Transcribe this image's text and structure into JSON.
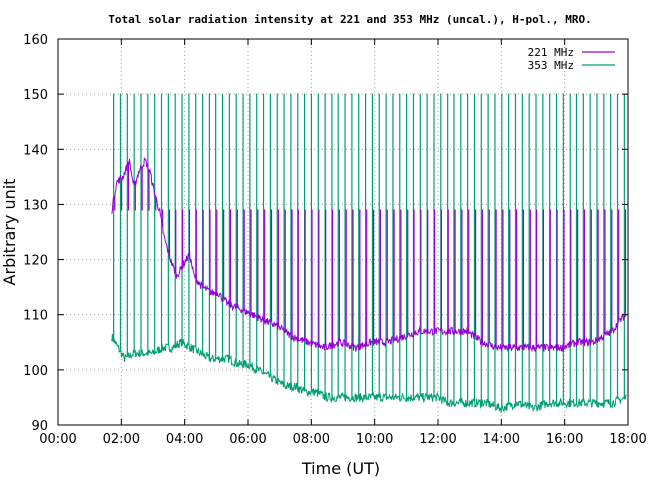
{
  "chart_data": {
    "type": "line",
    "title": "Total solar radiation intensity at 221 and 353 MHz (uncal.), H-pol., MRO.",
    "xlabel": "Time (UT)",
    "ylabel": "Arbitrary unit",
    "xlim": [
      0,
      18
    ],
    "ylim": [
      90,
      160
    ],
    "x_ticks": [
      "00:00",
      "02:00",
      "04:00",
      "06:00",
      "08:00",
      "10:00",
      "12:00",
      "14:00",
      "16:00",
      "18:00"
    ],
    "y_ticks": [
      "90",
      "100",
      "110",
      "120",
      "130",
      "140",
      "150",
      "160"
    ],
    "grid": true,
    "legend_position": "top-right",
    "series": [
      {
        "name": "221 MHz",
        "color": "#9400d3",
        "spike_top": 129,
        "baseline_points": [
          [
            1.7,
            129
          ],
          [
            1.85,
            134
          ],
          [
            2.05,
            135
          ],
          [
            2.25,
            138
          ],
          [
            2.4,
            133
          ],
          [
            2.55,
            136
          ],
          [
            2.75,
            138
          ],
          [
            2.9,
            136
          ],
          [
            3.05,
            132
          ],
          [
            3.2,
            129
          ],
          [
            3.35,
            124
          ],
          [
            3.55,
            120
          ],
          [
            3.75,
            117
          ],
          [
            3.95,
            119
          ],
          [
            4.15,
            121
          ],
          [
            4.3,
            117
          ],
          [
            4.55,
            115
          ],
          [
            4.85,
            114
          ],
          [
            5.05,
            114
          ],
          [
            5.35,
            112
          ],
          [
            5.75,
            111
          ],
          [
            6.15,
            110
          ],
          [
            6.5,
            109
          ],
          [
            6.9,
            108
          ],
          [
            7.4,
            106
          ],
          [
            7.9,
            105
          ],
          [
            8.4,
            104
          ],
          [
            8.9,
            105
          ],
          [
            9.4,
            104
          ],
          [
            9.9,
            105
          ],
          [
            10.4,
            105
          ],
          [
            10.9,
            106
          ],
          [
            11.4,
            107
          ],
          [
            11.9,
            107
          ],
          [
            12.4,
            107
          ],
          [
            12.9,
            107
          ],
          [
            13.4,
            105
          ],
          [
            13.9,
            104
          ],
          [
            14.4,
            104
          ],
          [
            14.9,
            104
          ],
          [
            15.4,
            104
          ],
          [
            15.9,
            104
          ],
          [
            16.4,
            105
          ],
          [
            16.9,
            105
          ],
          [
            17.2,
            106
          ],
          [
            17.5,
            107
          ],
          [
            17.75,
            109
          ],
          [
            17.95,
            110
          ]
        ]
      },
      {
        "name": "353 MHz",
        "color": "#009e73",
        "spike_top": 150,
        "baseline_points": [
          [
            1.7,
            106
          ],
          [
            1.9,
            104
          ],
          [
            2.1,
            102
          ],
          [
            2.4,
            103
          ],
          [
            2.7,
            103
          ],
          [
            3.0,
            103
          ],
          [
            3.3,
            104
          ],
          [
            3.6,
            104
          ],
          [
            3.9,
            105
          ],
          [
            4.2,
            104
          ],
          [
            4.5,
            103
          ],
          [
            4.8,
            102
          ],
          [
            5.1,
            102
          ],
          [
            5.4,
            102
          ],
          [
            5.7,
            101
          ],
          [
            6.0,
            101
          ],
          [
            6.3,
            100
          ],
          [
            6.6,
            99
          ],
          [
            6.9,
            98
          ],
          [
            7.2,
            97
          ],
          [
            7.5,
            97
          ],
          [
            7.8,
            96
          ],
          [
            8.1,
            96
          ],
          [
            8.5,
            95
          ],
          [
            9.0,
            95
          ],
          [
            9.5,
            95
          ],
          [
            10.0,
            95
          ],
          [
            10.5,
            95
          ],
          [
            11.0,
            95
          ],
          [
            11.5,
            95
          ],
          [
            12.0,
            95
          ],
          [
            12.3,
            94
          ],
          [
            12.6,
            94
          ],
          [
            13.0,
            94
          ],
          [
            13.5,
            94
          ],
          [
            14.0,
            93
          ],
          [
            14.5,
            94
          ],
          [
            15.0,
            93
          ],
          [
            15.5,
            94
          ],
          [
            16.0,
            94
          ],
          [
            16.5,
            94
          ],
          [
            17.0,
            94
          ],
          [
            17.5,
            94
          ],
          [
            17.95,
            95
          ]
        ]
      }
    ]
  }
}
